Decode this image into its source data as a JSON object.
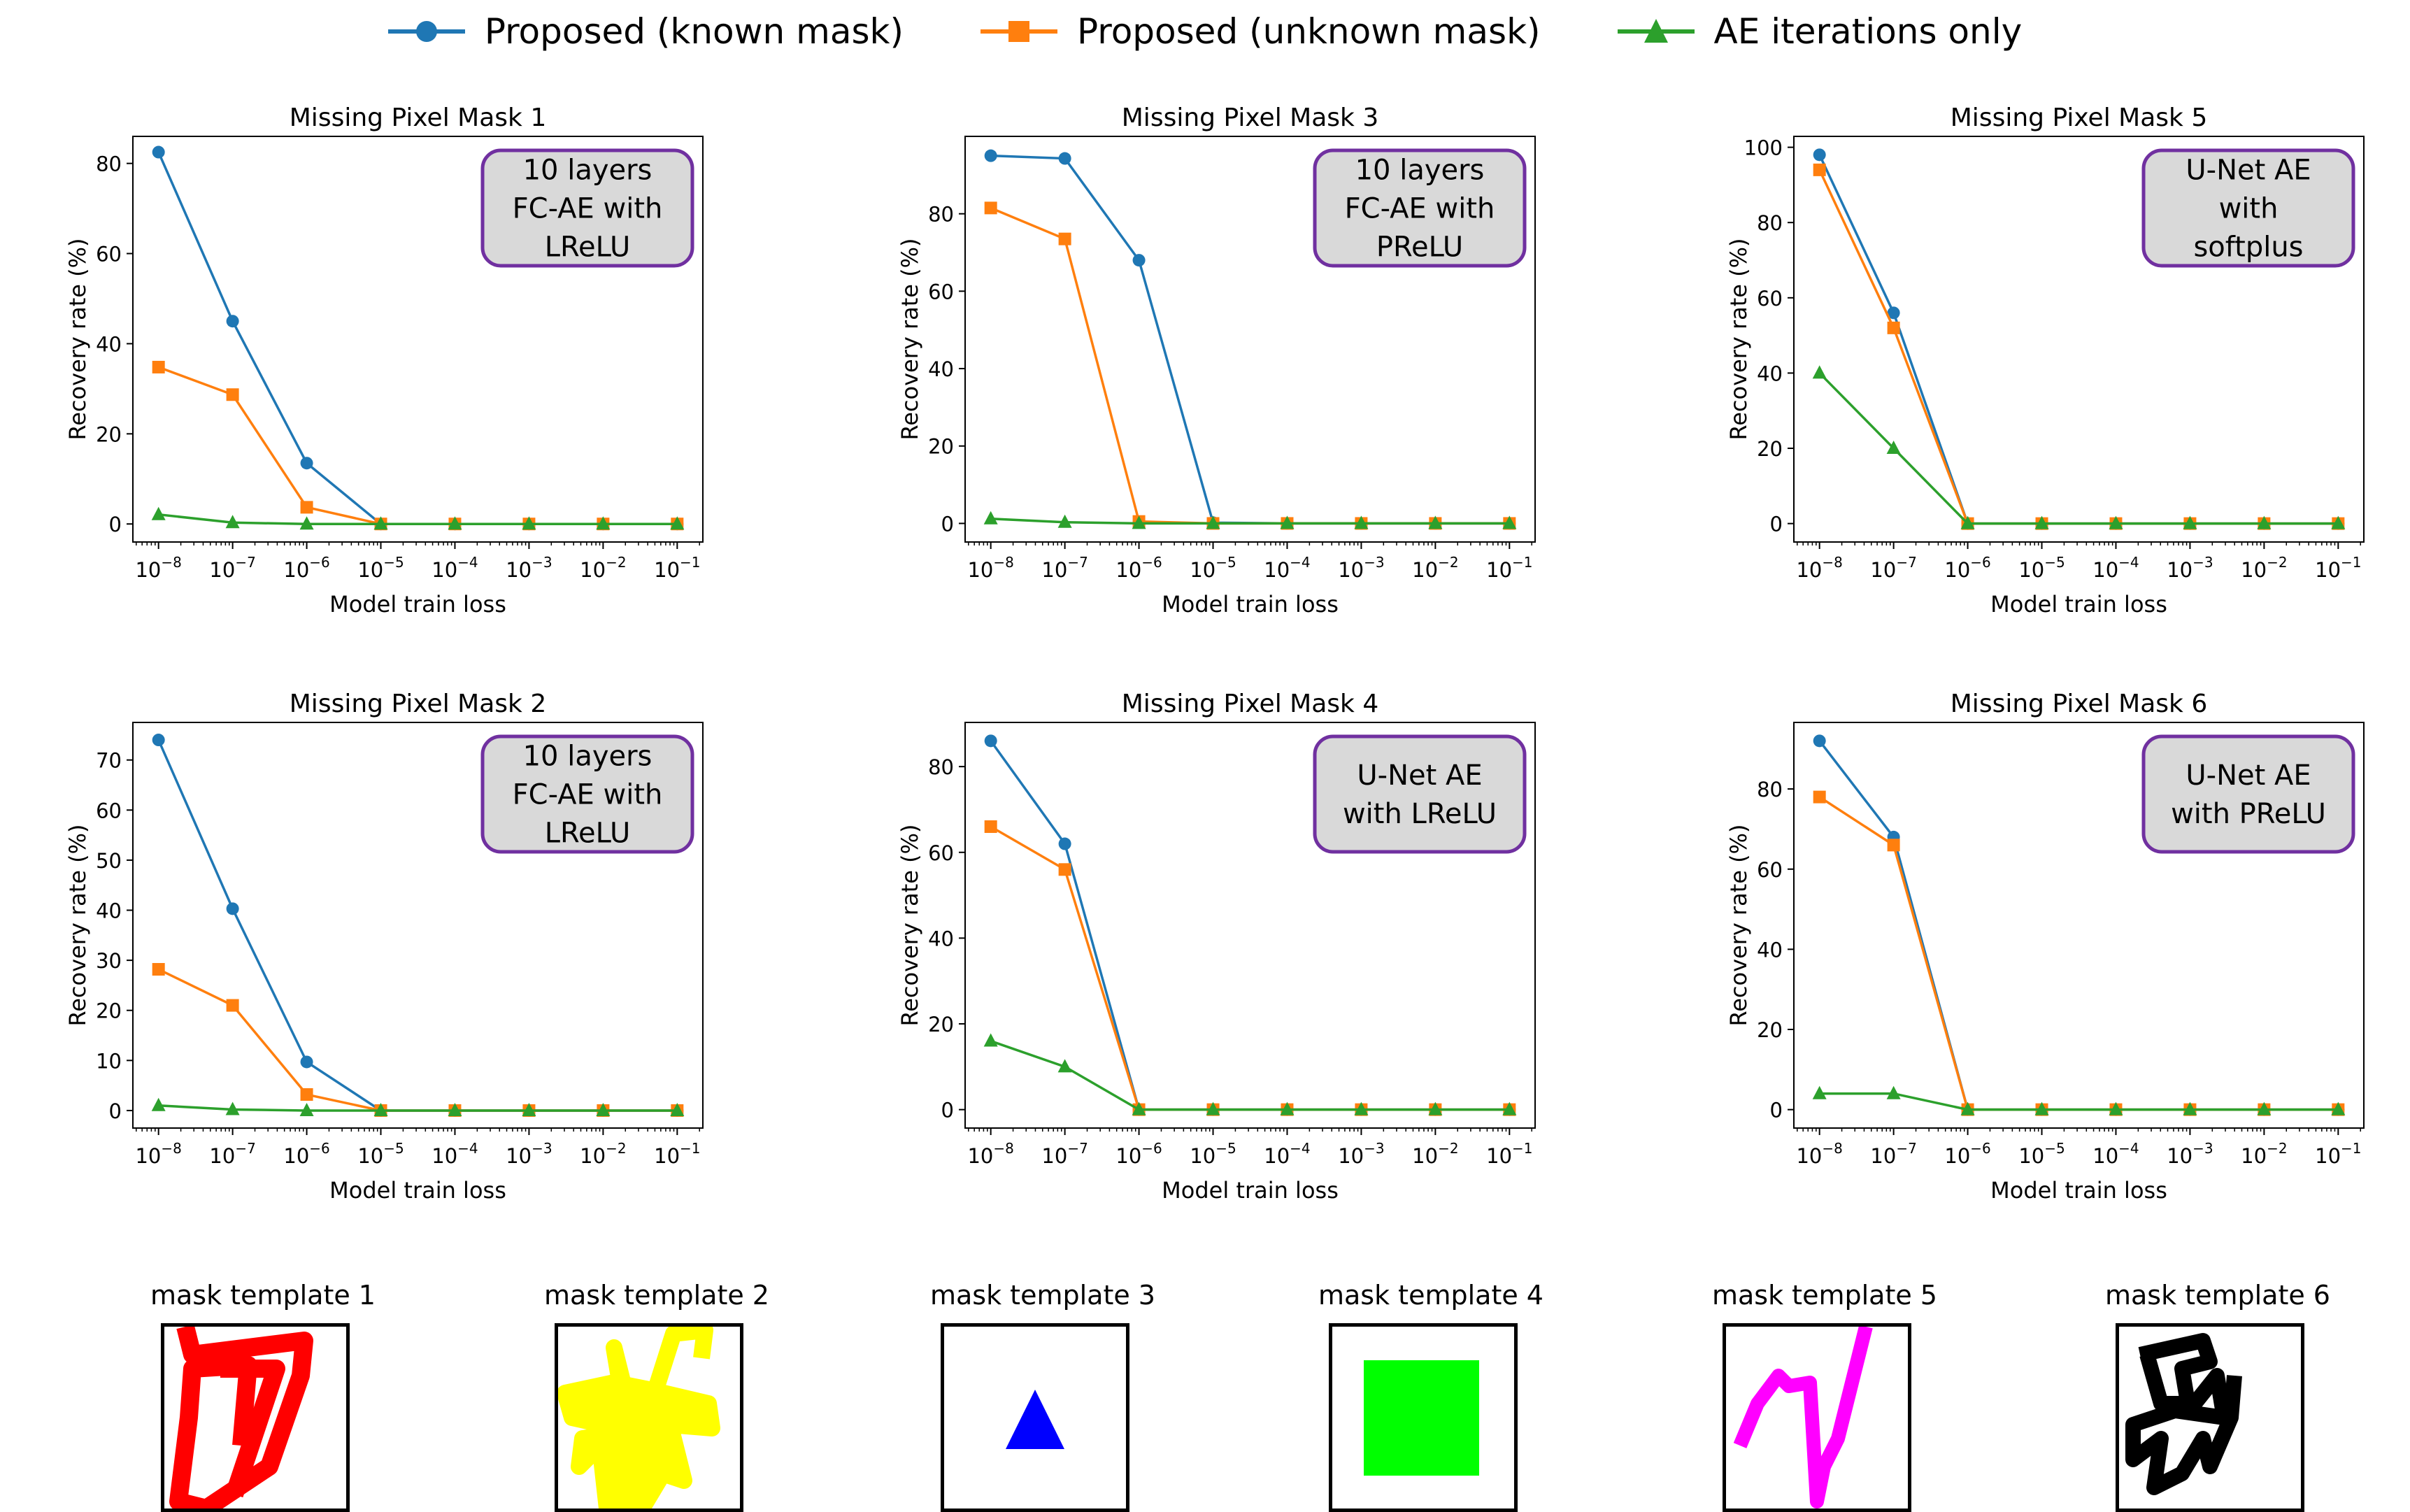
{
  "legend": [
    {
      "label": "Proposed (known mask)",
      "color": "#1f77b4",
      "marker": "circle"
    },
    {
      "label": "Proposed (unknown mask)",
      "color": "#ff7f0e",
      "marker": "square"
    },
    {
      "label": "AE iterations only",
      "color": "#2ca02c",
      "marker": "triangle"
    }
  ],
  "chart_data": [
    {
      "type": "line",
      "title": "Missing Pixel Mask 1",
      "annotation": [
        "10 layers",
        "FC-AE with",
        "LReLU"
      ],
      "xlabel": "Model train loss",
      "ylabel": "Recovery rate (%)",
      "x": [
        "1e-8",
        "1e-7",
        "1e-6",
        "1e-5",
        "1e-4",
        "1e-3",
        "1e-2",
        "1e-1"
      ],
      "x_tick_labels": [
        "10^-8",
        "10^-7",
        "10^-6",
        "10^-5",
        "10^-4",
        "10^-3",
        "10^-2",
        "10^-1"
      ],
      "xscale": "log",
      "yticks": [
        0,
        20,
        40,
        60,
        80
      ],
      "ylim": [
        -4,
        86
      ],
      "series": [
        {
          "name": "Proposed (known mask)",
          "values": [
            82.5,
            45,
            13.5,
            0,
            0,
            0,
            0,
            0
          ]
        },
        {
          "name": "Proposed (unknown mask)",
          "values": [
            34.8,
            28.7,
            3.7,
            0,
            0,
            0,
            0,
            0
          ]
        },
        {
          "name": "AE iterations only",
          "values": [
            2.1,
            0.3,
            0,
            0,
            0,
            0,
            0,
            0
          ]
        }
      ]
    },
    {
      "type": "line",
      "title": "Missing Pixel Mask 2",
      "annotation": [
        "10 layers",
        "FC-AE with",
        "LReLU"
      ],
      "xlabel": "Model train loss",
      "ylabel": "Recovery rate (%)",
      "x": [
        "1e-8",
        "1e-7",
        "1e-6",
        "1e-5",
        "1e-4",
        "1e-3",
        "1e-2",
        "1e-1"
      ],
      "x_tick_labels": [
        "10^-8",
        "10^-7",
        "10^-6",
        "10^-5",
        "10^-4",
        "10^-3",
        "10^-2",
        "10^-1"
      ],
      "xscale": "log",
      "yticks": [
        0,
        10,
        20,
        30,
        40,
        50,
        60,
        70
      ],
      "ylim": [
        -3.5,
        77.5
      ],
      "series": [
        {
          "name": "Proposed (known mask)",
          "values": [
            74,
            40.3,
            9.7,
            0,
            0,
            0,
            0,
            0
          ]
        },
        {
          "name": "Proposed (unknown mask)",
          "values": [
            28.2,
            21,
            3.2,
            0,
            0,
            0,
            0,
            0
          ]
        },
        {
          "name": "AE iterations only",
          "values": [
            1,
            0.2,
            0,
            0,
            0,
            0,
            0,
            0
          ]
        }
      ]
    },
    {
      "type": "line",
      "title": "Missing Pixel Mask 3",
      "annotation": [
        "10 layers",
        "FC-AE with",
        "PReLU"
      ],
      "xlabel": "Model train loss",
      "ylabel": "Recovery rate (%)",
      "x": [
        "1e-8",
        "1e-7",
        "1e-6",
        "1e-5",
        "1e-4",
        "1e-3",
        "1e-2",
        "1e-1"
      ],
      "x_tick_labels": [
        "10^-8",
        "10^-7",
        "10^-6",
        "10^-5",
        "10^-4",
        "10^-3",
        "10^-2",
        "10^-1"
      ],
      "xscale": "log",
      "yticks": [
        0,
        20,
        40,
        60,
        80
      ],
      "ylim": [
        -4.8,
        100
      ],
      "series": [
        {
          "name": "Proposed (known mask)",
          "values": [
            95,
            94.3,
            68,
            0.2,
            0,
            0,
            0,
            0
          ]
        },
        {
          "name": "Proposed (unknown mask)",
          "values": [
            81.5,
            73.5,
            0.5,
            0,
            0,
            0,
            0,
            0
          ]
        },
        {
          "name": "AE iterations only",
          "values": [
            1.2,
            0.3,
            0,
            0,
            0,
            0,
            0,
            0
          ]
        }
      ]
    },
    {
      "type": "line",
      "title": "Missing Pixel Mask 4",
      "annotation": [
        "U-Net AE",
        "with LReLU"
      ],
      "xlabel": "Model train loss",
      "ylabel": "Recovery rate (%)",
      "x": [
        "1e-8",
        "1e-7",
        "1e-6",
        "1e-5",
        "1e-4",
        "1e-3",
        "1e-2",
        "1e-1"
      ],
      "x_tick_labels": [
        "10^-8",
        "10^-7",
        "10^-6",
        "10^-5",
        "10^-4",
        "10^-3",
        "10^-2",
        "10^-1"
      ],
      "xscale": "log",
      "yticks": [
        0,
        20,
        40,
        60,
        80
      ],
      "ylim": [
        -4.3,
        90.3
      ],
      "series": [
        {
          "name": "Proposed (known mask)",
          "values": [
            86,
            62,
            0,
            0,
            0,
            0,
            0,
            0
          ]
        },
        {
          "name": "Proposed (unknown mask)",
          "values": [
            66,
            56,
            0,
            0,
            0,
            0,
            0,
            0
          ]
        },
        {
          "name": "AE iterations only",
          "values": [
            16,
            10,
            0,
            0,
            0,
            0,
            0,
            0
          ]
        }
      ]
    },
    {
      "type": "line",
      "title": "Missing Pixel Mask 5",
      "annotation": [
        "U-Net AE",
        "with",
        "softplus"
      ],
      "xlabel": "Model train loss",
      "ylabel": "Recovery rate (%)",
      "x": [
        "1e-8",
        "1e-7",
        "1e-6",
        "1e-5",
        "1e-4",
        "1e-3",
        "1e-2",
        "1e-1"
      ],
      "x_tick_labels": [
        "10^-8",
        "10^-7",
        "10^-6",
        "10^-5",
        "10^-4",
        "10^-3",
        "10^-2",
        "10^-1"
      ],
      "xscale": "log",
      "yticks": [
        0,
        20,
        40,
        60,
        80,
        100
      ],
      "ylim": [
        -4.9,
        102.9
      ],
      "series": [
        {
          "name": "Proposed (known mask)",
          "values": [
            98,
            56,
            0,
            0,
            0,
            0,
            0,
            0
          ]
        },
        {
          "name": "Proposed (unknown mask)",
          "values": [
            94,
            52,
            0,
            0,
            0,
            0,
            0,
            0
          ]
        },
        {
          "name": "AE iterations only",
          "values": [
            40,
            20,
            0,
            0,
            0,
            0,
            0,
            0
          ]
        }
      ]
    },
    {
      "type": "line",
      "title": "Missing Pixel Mask 6",
      "annotation": [
        "U-Net AE",
        "with PReLU"
      ],
      "xlabel": "Model train loss",
      "ylabel": "Recovery rate (%)",
      "x": [
        "1e-8",
        "1e-7",
        "1e-6",
        "1e-5",
        "1e-4",
        "1e-3",
        "1e-2",
        "1e-1"
      ],
      "x_tick_labels": [
        "10^-8",
        "10^-7",
        "10^-6",
        "10^-5",
        "10^-4",
        "10^-3",
        "10^-2",
        "10^-1"
      ],
      "xscale": "log",
      "yticks": [
        0,
        20,
        40,
        60,
        80
      ],
      "ylim": [
        -4.6,
        96.6
      ],
      "series": [
        {
          "name": "Proposed (known mask)",
          "values": [
            92,
            68,
            0,
            0,
            0,
            0,
            0,
            0
          ]
        },
        {
          "name": "Proposed (unknown mask)",
          "values": [
            78,
            66,
            0,
            0,
            0,
            0,
            0,
            0
          ]
        },
        {
          "name": "AE iterations only",
          "values": [
            4,
            4,
            0,
            0,
            0,
            0,
            0,
            0
          ]
        }
      ]
    }
  ],
  "style": {
    "annotation_fill": "#d9d9d9",
    "annotation_border": "#7030a0"
  },
  "mask_templates": [
    {
      "label": "mask template 1",
      "color": "#ff0000",
      "shape": "scribble"
    },
    {
      "label": "mask template 2",
      "color": "#ffff00",
      "shape": "scribble"
    },
    {
      "label": "mask template 3",
      "color": "#0000ff",
      "shape": "triangle"
    },
    {
      "label": "mask template 4",
      "color": "#00ff00",
      "shape": "rectangle"
    },
    {
      "label": "mask template 5",
      "color": "#ff00ff",
      "shape": "scribble"
    },
    {
      "label": "mask template 6",
      "color": "#000000",
      "shape": "scribble"
    }
  ]
}
